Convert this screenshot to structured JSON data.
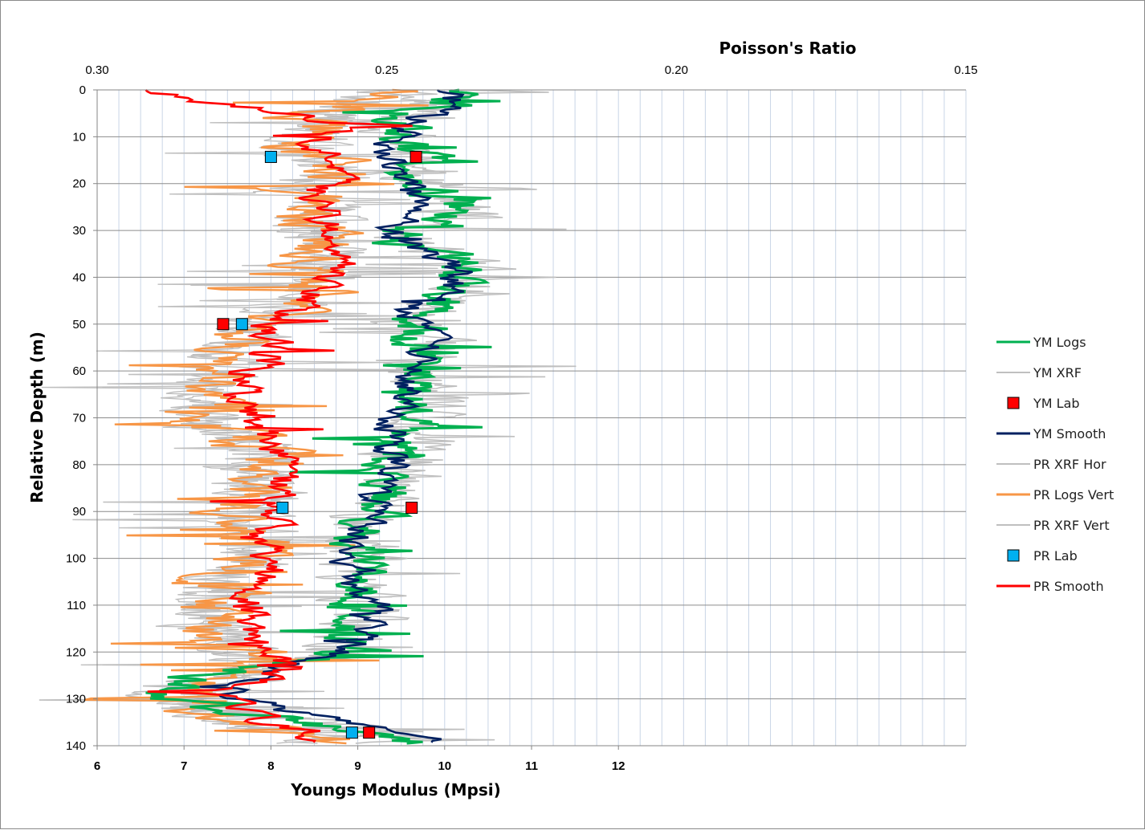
{
  "chart_data": {
    "type": "line",
    "title": "",
    "xlabel_bottom": "Youngs Modulus (Mpsi)",
    "xlabel_top": "Poisson's Ratio",
    "ylabel": "Relative Depth (m)",
    "ylim": [
      0,
      140
    ],
    "y_ticks": [
      "0",
      "10",
      "20",
      "30",
      "40",
      "50",
      "60",
      "70",
      "80",
      "90",
      "100",
      "110",
      "120",
      "130",
      "140"
    ],
    "ym_xlim": [
      6,
      16
    ],
    "ym_ticks": [
      "6",
      "7",
      "8",
      "9",
      "10",
      "11",
      "12"
    ],
    "pr_xlim": [
      0.3,
      0.15
    ],
    "pr_ticks": [
      "0.30",
      "0.25",
      "0.20",
      "0.15"
    ],
    "pr_tick_values": [
      0.3,
      0.25,
      0.2,
      0.15
    ],
    "colors": {
      "ym_logs": "#00b050",
      "ym_xrf": "#bfbfbf",
      "ym_lab": "#ff0000",
      "ym_smooth": "#002060",
      "pr_xrf_hor": "#bfbfbf",
      "pr_logs_vert": "#f79646",
      "pr_xrf_vert": "#bfbfbf",
      "pr_lab": "#00b0f0",
      "pr_smooth": "#ff0000",
      "grid": "#c9d5e6",
      "grid_major": "#8c8c8c"
    },
    "legend": [
      "YM Logs",
      "YM XRF",
      "YM Lab",
      "YM Smooth",
      "PR XRF Hor",
      "PR Logs Vert",
      "PR XRF Vert",
      "PR Lab",
      "PR Smooth"
    ],
    "legend_position": "right",
    "ym_lab": [
      {
        "x": 9.67,
        "y": 14.3
      },
      {
        "x": 7.45,
        "y": 50.0
      },
      {
        "x": 9.62,
        "y": 89.2
      },
      {
        "x": 9.13,
        "y": 137.2
      }
    ],
    "pr_lab": [
      {
        "x": 0.27,
        "y": 14.3
      },
      {
        "x": 0.275,
        "y": 50.0
      },
      {
        "x": 0.268,
        "y": 89.2
      },
      {
        "x": 0.256,
        "y": 137.2
      }
    ],
    "ym_logs_profile": [
      [
        0,
        10.3
      ],
      [
        3,
        10.1
      ],
      [
        6,
        9.4
      ],
      [
        9,
        9.5
      ],
      [
        12,
        9.6
      ],
      [
        15,
        9.8
      ],
      [
        18,
        9.7
      ],
      [
        21,
        9.8
      ],
      [
        24,
        10.1
      ],
      [
        27,
        10.2
      ],
      [
        30,
        9.6
      ],
      [
        33,
        9.5
      ],
      [
        36,
        10.2
      ],
      [
        39,
        10.3
      ],
      [
        42,
        10.2
      ],
      [
        45,
        10.0
      ],
      [
        48,
        9.6
      ],
      [
        51,
        9.7
      ],
      [
        54,
        9.8
      ],
      [
        57,
        9.8
      ],
      [
        60,
        9.6
      ],
      [
        63,
        9.6
      ],
      [
        66,
        9.7
      ],
      [
        69,
        9.7
      ],
      [
        72,
        9.6
      ],
      [
        75,
        9.6
      ],
      [
        78,
        9.5
      ],
      [
        81,
        9.4
      ],
      [
        84,
        9.4
      ],
      [
        87,
        9.3
      ],
      [
        90,
        9.2
      ],
      [
        93,
        9.1
      ],
      [
        96,
        9.1
      ],
      [
        99,
        9.0
      ],
      [
        102,
        9.0
      ],
      [
        105,
        9.0
      ],
      [
        108,
        9.0
      ],
      [
        111,
        9.1
      ],
      [
        114,
        9.0
      ],
      [
        117,
        8.9
      ],
      [
        120,
        8.9
      ],
      [
        123,
        8.2
      ],
      [
        126,
        7.0
      ],
      [
        129,
        6.8
      ],
      [
        132,
        7.2
      ],
      [
        135,
        8.6
      ],
      [
        138,
        9.5
      ],
      [
        140,
        9.6
      ]
    ],
    "ym_smooth_profile": [
      [
        0,
        10.0
      ],
      [
        3,
        10.1
      ],
      [
        6,
        9.7
      ],
      [
        9,
        9.6
      ],
      [
        12,
        9.4
      ],
      [
        15,
        9.5
      ],
      [
        18,
        9.5
      ],
      [
        21,
        9.6
      ],
      [
        24,
        9.7
      ],
      [
        27,
        9.7
      ],
      [
        30,
        9.2
      ],
      [
        33,
        9.6
      ],
      [
        36,
        10.0
      ],
      [
        39,
        10.2
      ],
      [
        42,
        10.1
      ],
      [
        45,
        9.8
      ],
      [
        48,
        9.7
      ],
      [
        51,
        9.8
      ],
      [
        54,
        9.8
      ],
      [
        57,
        9.7
      ],
      [
        60,
        9.6
      ],
      [
        63,
        9.5
      ],
      [
        66,
        9.5
      ],
      [
        69,
        9.4
      ],
      [
        72,
        9.4
      ],
      [
        75,
        9.5
      ],
      [
        78,
        9.4
      ],
      [
        81,
        9.3
      ],
      [
        84,
        9.2
      ],
      [
        87,
        9.2
      ],
      [
        90,
        9.1
      ],
      [
        93,
        9.1
      ],
      [
        96,
        9.0
      ],
      [
        99,
        8.9
      ],
      [
        102,
        9.0
      ],
      [
        105,
        9.0
      ],
      [
        108,
        9.1
      ],
      [
        111,
        9.2
      ],
      [
        114,
        9.1
      ],
      [
        117,
        9.0
      ],
      [
        120,
        8.8
      ],
      [
        123,
        8.2
      ],
      [
        126,
        7.8
      ],
      [
        129,
        7.6
      ],
      [
        132,
        8.0
      ],
      [
        135,
        9.0
      ],
      [
        138,
        9.8
      ],
      [
        140,
        9.9
      ]
    ],
    "pr_logs_profile": [
      [
        0,
        0.252
      ],
      [
        3,
        0.254
      ],
      [
        6,
        0.262
      ],
      [
        9,
        0.262
      ],
      [
        12,
        0.265
      ],
      [
        15,
        0.261
      ],
      [
        18,
        0.258
      ],
      [
        21,
        0.266
      ],
      [
        24,
        0.263
      ],
      [
        27,
        0.262
      ],
      [
        30,
        0.264
      ],
      [
        33,
        0.262
      ],
      [
        36,
        0.261
      ],
      [
        39,
        0.262
      ],
      [
        42,
        0.264
      ],
      [
        45,
        0.266
      ],
      [
        48,
        0.272
      ],
      [
        51,
        0.274
      ],
      [
        54,
        0.276
      ],
      [
        57,
        0.278
      ],
      [
        60,
        0.279
      ],
      [
        63,
        0.28
      ],
      [
        66,
        0.281
      ],
      [
        69,
        0.282
      ],
      [
        72,
        0.28
      ],
      [
        75,
        0.274
      ],
      [
        78,
        0.27
      ],
      [
        81,
        0.272
      ],
      [
        84,
        0.273
      ],
      [
        87,
        0.272
      ],
      [
        90,
        0.276
      ],
      [
        93,
        0.274
      ],
      [
        96,
        0.273
      ],
      [
        99,
        0.273
      ],
      [
        102,
        0.275
      ],
      [
        105,
        0.279
      ],
      [
        108,
        0.279
      ],
      [
        111,
        0.28
      ],
      [
        114,
        0.281
      ],
      [
        117,
        0.279
      ],
      [
        120,
        0.276
      ],
      [
        123,
        0.272
      ],
      [
        126,
        0.275
      ],
      [
        129,
        0.284
      ],
      [
        132,
        0.282
      ],
      [
        135,
        0.276
      ],
      [
        138,
        0.262
      ],
      [
        140,
        0.264
      ]
    ],
    "pr_smooth_profile": [
      [
        0,
        0.293
      ],
      [
        3,
        0.278
      ],
      [
        6,
        0.262
      ],
      [
        9,
        0.262
      ],
      [
        12,
        0.262
      ],
      [
        15,
        0.258
      ],
      [
        18,
        0.256
      ],
      [
        21,
        0.263
      ],
      [
        24,
        0.262
      ],
      [
        27,
        0.26
      ],
      [
        30,
        0.261
      ],
      [
        33,
        0.26
      ],
      [
        36,
        0.259
      ],
      [
        39,
        0.26
      ],
      [
        42,
        0.262
      ],
      [
        45,
        0.265
      ],
      [
        48,
        0.268
      ],
      [
        51,
        0.271
      ],
      [
        54,
        0.27
      ],
      [
        57,
        0.271
      ],
      [
        60,
        0.273
      ],
      [
        63,
        0.274
      ],
      [
        66,
        0.275
      ],
      [
        69,
        0.275
      ],
      [
        72,
        0.273
      ],
      [
        75,
        0.27
      ],
      [
        78,
        0.267
      ],
      [
        81,
        0.268
      ],
      [
        84,
        0.269
      ],
      [
        87,
        0.269
      ],
      [
        90,
        0.27
      ],
      [
        93,
        0.271
      ],
      [
        96,
        0.27
      ],
      [
        99,
        0.27
      ],
      [
        102,
        0.27
      ],
      [
        105,
        0.272
      ],
      [
        108,
        0.273
      ],
      [
        111,
        0.273
      ],
      [
        114,
        0.274
      ],
      [
        117,
        0.273
      ],
      [
        120,
        0.272
      ],
      [
        123,
        0.268
      ],
      [
        126,
        0.272
      ],
      [
        129,
        0.278
      ],
      [
        132,
        0.275
      ],
      [
        135,
        0.27
      ],
      [
        138,
        0.262
      ],
      [
        140,
        0.265
      ]
    ]
  }
}
